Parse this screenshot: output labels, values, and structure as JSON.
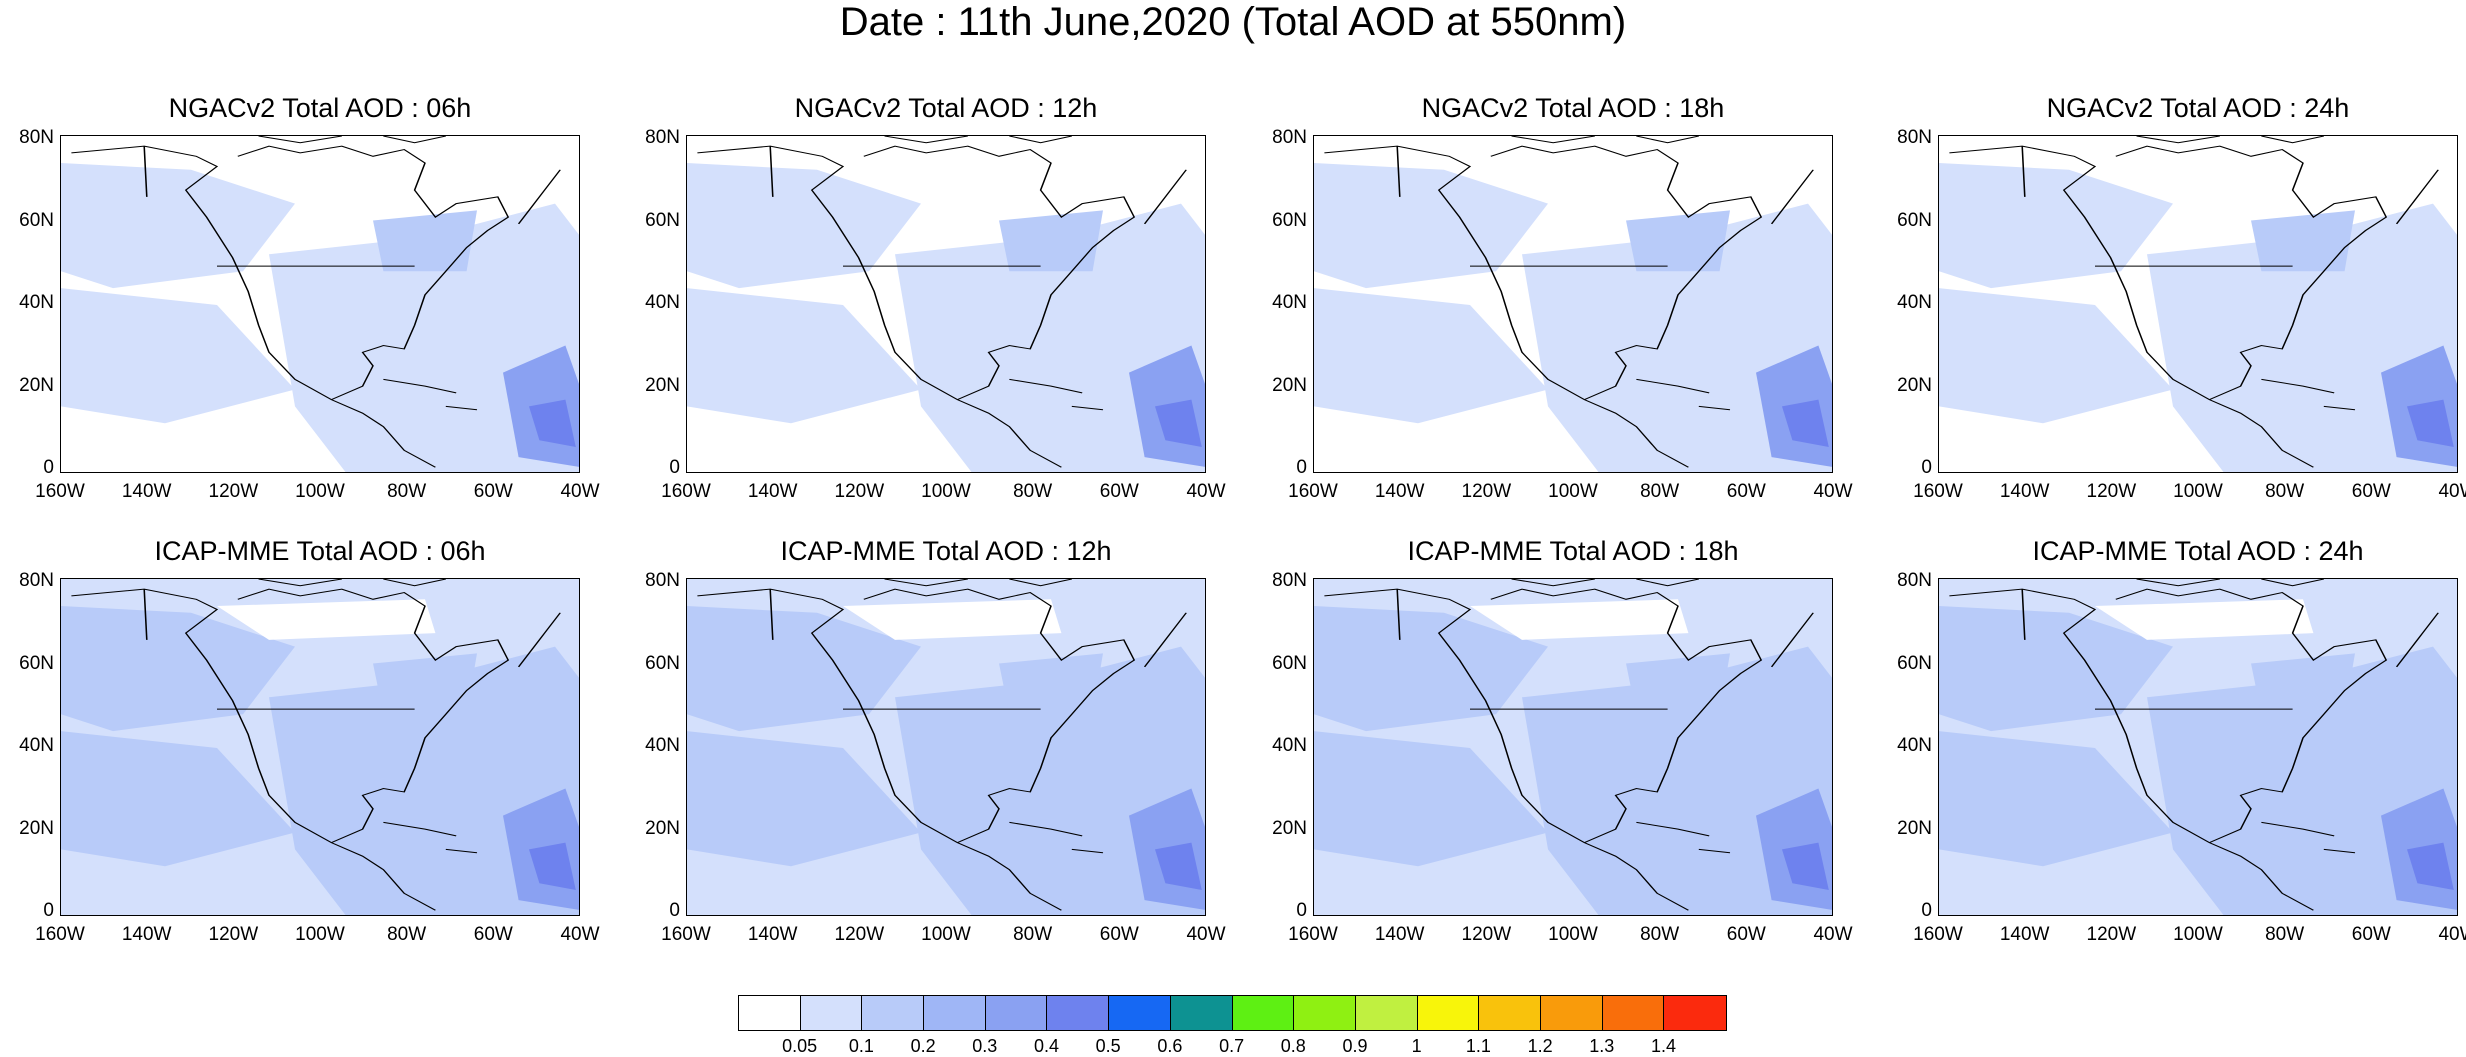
{
  "title": "Date : 11th June,2020 (Total AOD at 550nm)",
  "panels": [
    {
      "title": "NGACv2 Total AOD : 06h"
    },
    {
      "title": "NGACv2 Total AOD : 12h"
    },
    {
      "title": "NGACv2 Total AOD : 18h"
    },
    {
      "title": "NGACv2 Total AOD : 24h"
    },
    {
      "title": "ICAP-MME Total AOD : 06h"
    },
    {
      "title": "ICAP-MME Total AOD : 12h"
    },
    {
      "title": "ICAP-MME Total AOD : 18h"
    },
    {
      "title": "ICAP-MME Total AOD : 24h"
    }
  ],
  "lat_labels": [
    "80N",
    "60N",
    "40N",
    "20N",
    "0"
  ],
  "lon_labels": [
    "160W",
    "140W",
    "120W",
    "100W",
    "80W",
    "60W",
    "40W"
  ],
  "colorbar": {
    "colors": [
      "#ffffff",
      "#d4e0fc",
      "#b8cbf9",
      "#9fb6f6",
      "#8aa1f2",
      "#6e82ee",
      "#1668f3",
      "#0d9292",
      "#5ef013",
      "#8ff012",
      "#c0f040",
      "#f8f50a",
      "#f9c20c",
      "#f99b0b",
      "#f96e0b",
      "#fb2a0d"
    ],
    "labels": [
      "0.05",
      "0.1",
      "0.2",
      "0.3",
      "0.4",
      "0.5",
      "0.6",
      "0.7",
      "0.8",
      "0.9",
      "1",
      "1.1",
      "1.2",
      "1.3",
      "1.4"
    ]
  }
}
